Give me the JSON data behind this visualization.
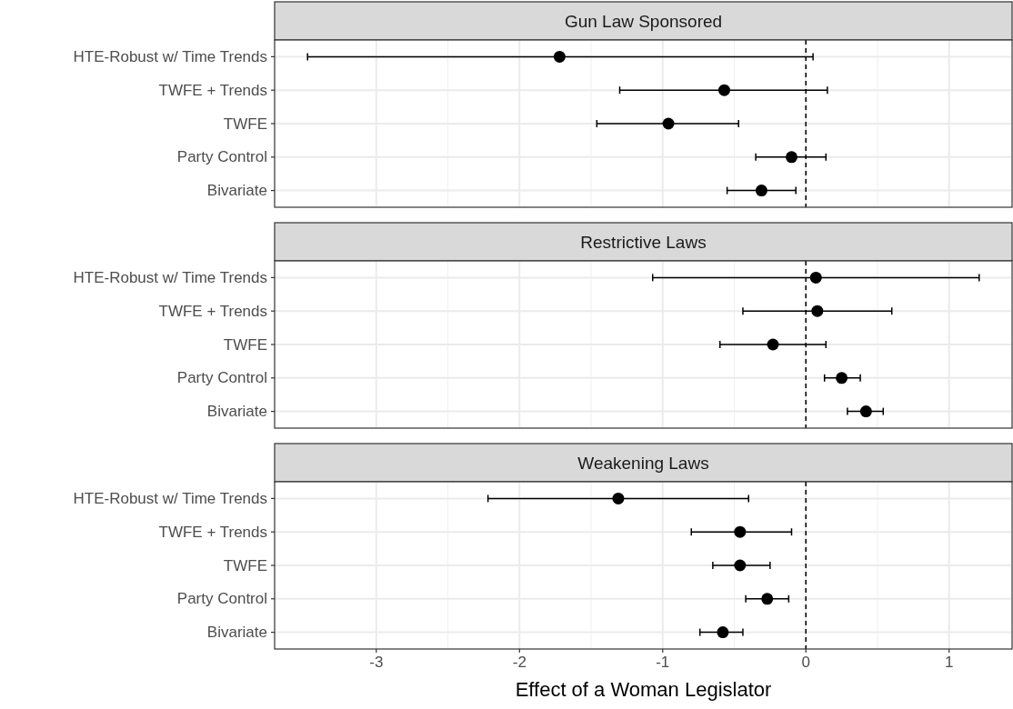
{
  "chart_data": [
    {
      "type": "scatter",
      "title": "Gun Law Sponsored",
      "orientation": "horizontal",
      "categories": [
        "HTE-Robust w/ Time Trends",
        "TWFE + Trends",
        "TWFE",
        "Party Control",
        "Bivariate"
      ],
      "series": [
        {
          "color": "#000000",
          "values": [
            -1.72,
            -0.57,
            -0.96,
            -0.1,
            -0.31
          ],
          "errors": [
            [
              -3.48,
              0.05
            ],
            [
              -1.3,
              0.15
            ],
            [
              -1.46,
              -0.47
            ],
            [
              -0.35,
              0.14
            ],
            [
              -0.55,
              -0.07
            ]
          ]
        }
      ],
      "xlim": [
        -3.71,
        1.44
      ],
      "xticks": [
        -3,
        -2,
        -1,
        0,
        1
      ],
      "ref_lines": [
        {
          "axis": "x",
          "value": 0,
          "color": "#000000",
          "line_style": "dashed"
        }
      ],
      "grid": true,
      "marker": "circle",
      "tick_labels": "y"
    },
    {
      "type": "scatter",
      "title": "Restrictive Laws",
      "orientation": "horizontal",
      "categories": [
        "HTE-Robust w/ Time Trends",
        "TWFE + Trends",
        "TWFE",
        "Party Control",
        "Bivariate"
      ],
      "series": [
        {
          "color": "#000000",
          "values": [
            0.07,
            0.08,
            -0.23,
            0.25,
            0.42
          ],
          "errors": [
            [
              -1.07,
              1.21
            ],
            [
              -0.44,
              0.6
            ],
            [
              -0.6,
              0.14
            ],
            [
              0.13,
              0.38
            ],
            [
              0.29,
              0.54
            ]
          ]
        }
      ],
      "xlim": [
        -3.71,
        1.44
      ],
      "xticks": [
        -3,
        -2,
        -1,
        0,
        1
      ],
      "ref_lines": [
        {
          "axis": "x",
          "value": 0,
          "color": "#000000",
          "line_style": "dashed"
        }
      ],
      "grid": true,
      "marker": "circle",
      "tick_labels": "y"
    },
    {
      "type": "scatter",
      "title": "Weakening Laws",
      "xlabel": "Effect of a Woman Legislator",
      "orientation": "horizontal",
      "categories": [
        "HTE-Robust w/ Time Trends",
        "TWFE + Trends",
        "TWFE",
        "Party Control",
        "Bivariate"
      ],
      "series": [
        {
          "color": "#000000",
          "values": [
            -1.31,
            -0.46,
            -0.46,
            -0.27,
            -0.58
          ],
          "errors": [
            [
              -2.22,
              -0.4
            ],
            [
              -0.8,
              -0.1
            ],
            [
              -0.65,
              -0.25
            ],
            [
              -0.42,
              -0.12
            ],
            [
              -0.74,
              -0.44
            ]
          ]
        }
      ],
      "xlim": [
        -3.71,
        1.44
      ],
      "xticks": [
        -3,
        -2,
        -1,
        0,
        1
      ],
      "ref_lines": [
        {
          "axis": "x",
          "value": 0,
          "color": "#000000",
          "line_style": "dashed"
        }
      ],
      "grid": true,
      "marker": "circle"
    }
  ]
}
